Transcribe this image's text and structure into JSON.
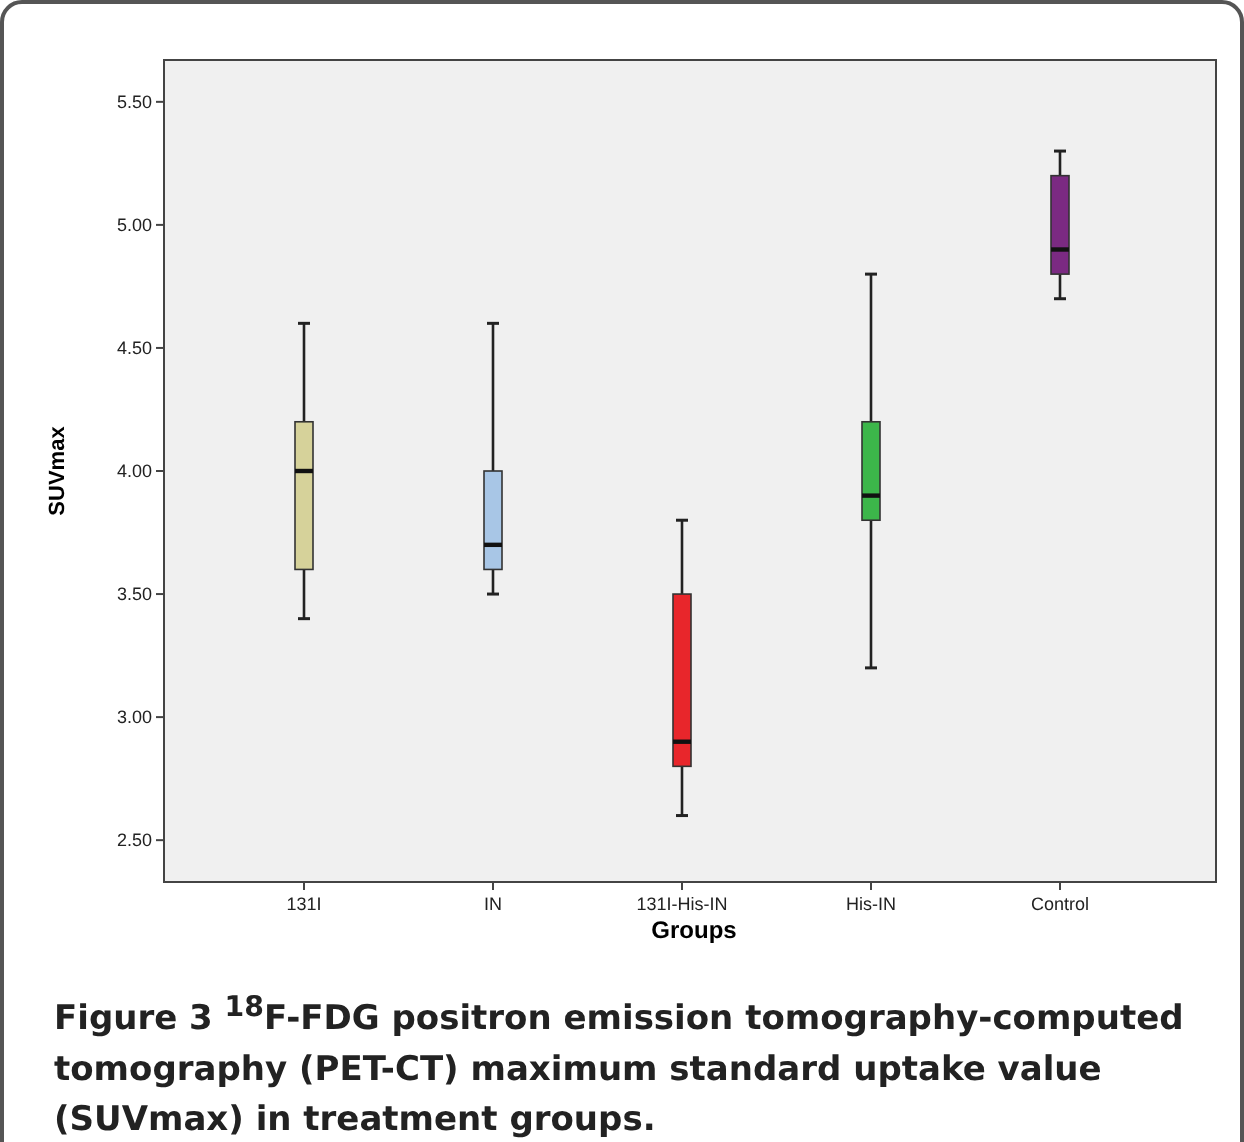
{
  "chart_data": {
    "type": "box",
    "xlabel": "Groups",
    "ylabel": "SUVmax",
    "categories": [
      "131I",
      "IN",
      "131I-His-IN",
      "His-IN",
      "Control"
    ],
    "boxes": [
      {
        "low": 3.4,
        "q1": 3.6,
        "median": 4.0,
        "q3": 4.2,
        "high": 4.6
      },
      {
        "low": 3.5,
        "q1": 3.6,
        "median": 3.7,
        "q3": 4.0,
        "high": 4.6
      },
      {
        "low": 2.6,
        "q1": 2.8,
        "median": 2.9,
        "q3": 3.5,
        "high": 3.8
      },
      {
        "low": 3.2,
        "q1": 3.8,
        "median": 3.9,
        "q3": 4.2,
        "high": 4.8
      },
      {
        "low": 4.7,
        "q1": 4.8,
        "median": 4.9,
        "q3": 5.2,
        "high": 5.3
      }
    ],
    "colors": [
      "#d6d29a",
      "#a8c6e6",
      "#e8262b",
      "#3cb64a",
      "#7b2a82"
    ],
    "ylim": [
      2.33,
      5.67
    ],
    "yticks": [
      {
        "value": 2.5,
        "label": "2.50"
      },
      {
        "value": 3,
        "label": "3.00"
      },
      {
        "value": 3.5,
        "label": "3.50"
      },
      {
        "value": 4,
        "label": "4.00"
      },
      {
        "value": 4.5,
        "label": "4.50"
      },
      {
        "value": 5,
        "label": "5.00"
      },
      {
        "value": 5.5,
        "label": "5.50"
      }
    ],
    "grid": false,
    "annotations": [
      "Figure 3 $^{18}$F-FDG positron emission tomography-computed tomography (PET-CT) maximum standard uptake value (SUVmax) in treatment groups."
    ]
  }
}
